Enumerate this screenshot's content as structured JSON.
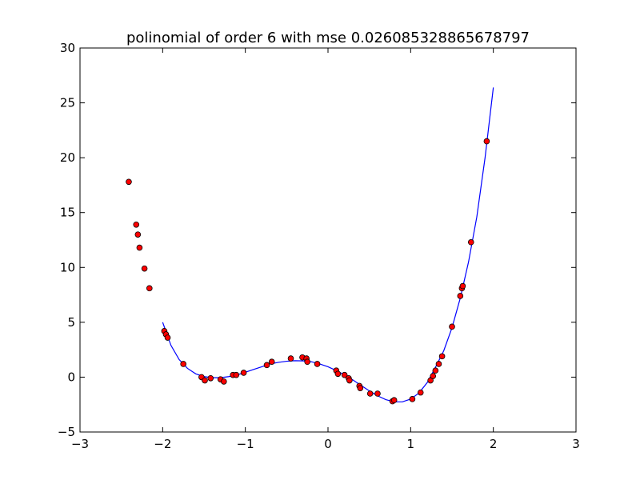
{
  "chart_data": {
    "type": "scatter",
    "title": "polinomial of order 6 with mse 0.0260853288656787​97",
    "xlabel": "",
    "ylabel": "",
    "xlim": [
      -3,
      3
    ],
    "ylim": [
      -5,
      30
    ],
    "xticks": [
      "−3",
      "−2",
      "−1",
      "0",
      "1",
      "2",
      "3"
    ],
    "yticks": [
      "−5",
      "0",
      "5",
      "10",
      "15",
      "20",
      "25",
      "30"
    ],
    "grid": false,
    "colors": {
      "points": "#ff0000",
      "point_edge": "#000000",
      "fit_line": "#0000ff"
    },
    "series": [
      {
        "kind": "points",
        "x": [
          -2.41,
          -2.32,
          -2.3,
          -2.28,
          -2.22,
          -2.16,
          -1.98,
          -1.96,
          -1.94,
          -1.75,
          -1.53,
          -1.49,
          -1.42,
          -1.3,
          -1.26,
          -1.15,
          -1.11,
          -1.02,
          -0.74,
          -0.68,
          -0.45,
          -0.31,
          -0.26,
          -0.25,
          -0.13,
          0.1,
          0.12,
          0.2,
          0.25,
          0.26,
          0.38,
          0.39,
          0.51,
          0.6,
          0.78,
          0.8,
          1.02,
          1.12,
          1.24,
          1.27,
          1.3,
          1.34,
          1.38,
          1.5,
          1.6,
          1.62,
          1.63,
          1.73,
          1.92
        ],
        "y": [
          17.8,
          13.9,
          13.0,
          11.8,
          9.9,
          8.1,
          4.2,
          3.9,
          3.6,
          1.2,
          0.0,
          -0.3,
          -0.1,
          -0.2,
          -0.4,
          0.2,
          0.2,
          0.4,
          1.1,
          1.4,
          1.7,
          1.8,
          1.7,
          1.4,
          1.2,
          0.6,
          0.3,
          0.2,
          -0.1,
          -0.3,
          -0.8,
          -1.0,
          -1.5,
          -1.5,
          -2.2,
          -2.1,
          -2.0,
          -1.4,
          -0.3,
          0.1,
          0.6,
          1.2,
          1.9,
          4.6,
          7.4,
          8.1,
          8.3,
          12.3,
          21.5
        ]
      },
      {
        "kind": "line",
        "x": [
          -2.0,
          -1.9,
          -1.8,
          -1.7,
          -1.6,
          -1.5,
          -1.4,
          -1.3,
          -1.2,
          -1.1,
          -1.0,
          -0.9,
          -0.8,
          -0.7,
          -0.6,
          -0.5,
          -0.4,
          -0.3,
          -0.2,
          -0.1,
          0.0,
          0.1,
          0.2,
          0.3,
          0.4,
          0.5,
          0.6,
          0.7,
          0.8,
          0.9,
          1.0,
          1.1,
          1.2,
          1.3,
          1.4,
          1.5,
          1.6,
          1.7,
          1.8,
          1.9,
          2.0
        ],
        "y": [
          5.0,
          2.9,
          1.6,
          0.8,
          0.3,
          0.05,
          -0.05,
          -0.05,
          0.05,
          0.2,
          0.45,
          0.7,
          0.95,
          1.2,
          1.35,
          1.45,
          1.5,
          1.48,
          1.4,
          1.2,
          0.95,
          0.6,
          0.2,
          -0.25,
          -0.75,
          -1.25,
          -1.7,
          -2.05,
          -2.25,
          -2.25,
          -2.0,
          -1.45,
          -0.5,
          0.9,
          2.4,
          4.5,
          7.2,
          10.5,
          14.6,
          20.0,
          26.4
        ]
      }
    ]
  }
}
